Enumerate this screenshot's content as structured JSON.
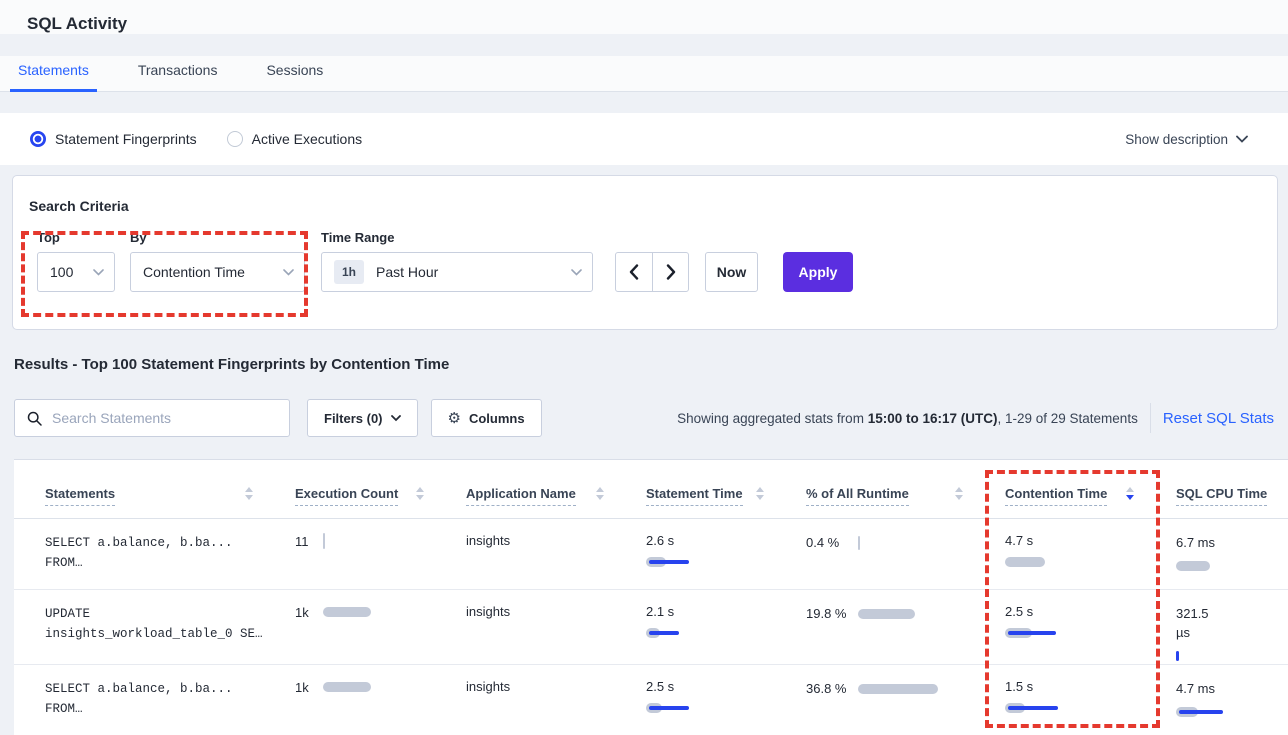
{
  "page": {
    "title": "SQL Activity"
  },
  "tabs": [
    {
      "label": "Statements",
      "active": true
    },
    {
      "label": "Transactions",
      "active": false
    },
    {
      "label": "Sessions",
      "active": false
    }
  ],
  "view_toggle": {
    "options": [
      {
        "label": "Statement Fingerprints",
        "selected": true
      },
      {
        "label": "Active Executions",
        "selected": false
      }
    ],
    "show_description_label": "Show description"
  },
  "search_criteria": {
    "heading": "Search Criteria",
    "top": {
      "label": "Top",
      "value": "100"
    },
    "by": {
      "label": "By",
      "value": "Contention Time"
    },
    "time_range": {
      "label": "Time Range",
      "badge": "1h",
      "value": "Past Hour"
    },
    "now_label": "Now",
    "apply_label": "Apply"
  },
  "results": {
    "heading": "Results - Top 100 Statement Fingerprints by Contention Time",
    "search_placeholder": "Search Statements",
    "filters_label": "Filters (0)",
    "columns_label": "Columns",
    "showing_prefix": "Showing aggregated stats from ",
    "showing_bold": "15:00 to 16:17 (UTC)",
    "showing_suffix": ", 1-29 of 29 Statements",
    "reset_label": "Reset SQL Stats"
  },
  "table": {
    "columns": [
      "Statements",
      "Execution Count",
      "Application Name",
      "Statement Time",
      "% of All Runtime",
      "Contention Time",
      "SQL CPU Time"
    ],
    "sort": {
      "column": "Contention Time",
      "direction": "desc"
    },
    "rows": [
      {
        "statement_line1": "SELECT a.balance, b.ba...",
        "statement_line2": "FROM…",
        "execution_count": "11",
        "application_name": "insights",
        "statement_time": "2.6 s",
        "pct_runtime": "0.4 %",
        "contention_time": "4.7 s",
        "sql_cpu_time": "6.7 ms",
        "bars": {
          "execution_count": {
            "gray": 2,
            "gray_h": 16
          },
          "statement_time": {
            "gray": 20,
            "blue": 40
          },
          "pct_runtime": {
            "gray": 2,
            "gray_h": 14
          },
          "contention_time": {
            "gray": 40
          },
          "sql_cpu_time": {
            "gray": 34
          }
        }
      },
      {
        "statement_line1": "UPDATE",
        "statement_line2": "insights_workload_table_0 SE…",
        "execution_count": "1k",
        "application_name": "insights",
        "statement_time": "2.1 s",
        "pct_runtime": "19.8 %",
        "contention_time": "2.5 s",
        "sql_cpu_time": "321.5 µs",
        "bars": {
          "execution_count": {
            "gray": 48
          },
          "statement_time": {
            "gray": 14,
            "blue": 30
          },
          "pct_runtime": {
            "gray": 57
          },
          "contention_time": {
            "gray": 27,
            "blue": 48
          },
          "sql_cpu_time": {
            "blue": 3,
            "blue_h": 10
          }
        }
      },
      {
        "statement_line1": "SELECT a.balance, b.ba...",
        "statement_line2": "FROM…",
        "execution_count": "1k",
        "application_name": "insights",
        "statement_time": "2.5 s",
        "pct_runtime": "36.8 %",
        "contention_time": "1.5 s",
        "sql_cpu_time": "4.7 ms",
        "bars": {
          "execution_count": {
            "gray": 48
          },
          "statement_time": {
            "gray": 16,
            "blue": 40
          },
          "pct_runtime": {
            "gray": 80
          },
          "contention_time": {
            "gray": 20,
            "blue": 50
          },
          "sql_cpu_time": {
            "gray": 22,
            "blue": 44
          }
        }
      }
    ]
  },
  "annotations": {
    "highlight_color": "#e5392e",
    "regions": [
      "top-by-selectors",
      "contention-time-column"
    ]
  },
  "icons": {
    "search": "magnifier",
    "gear": "⚙",
    "chevron_down": "v-chevron",
    "chevron_left": "‹",
    "chevron_right": "›",
    "sort": "up-down-triangles"
  },
  "colors": {
    "accent_blue": "#2962ff",
    "apply_purple": "#5b2ee0",
    "bar_gray": "#c3cad8",
    "bar_blue": "#2743ee",
    "annotation_red": "#e5392e"
  }
}
